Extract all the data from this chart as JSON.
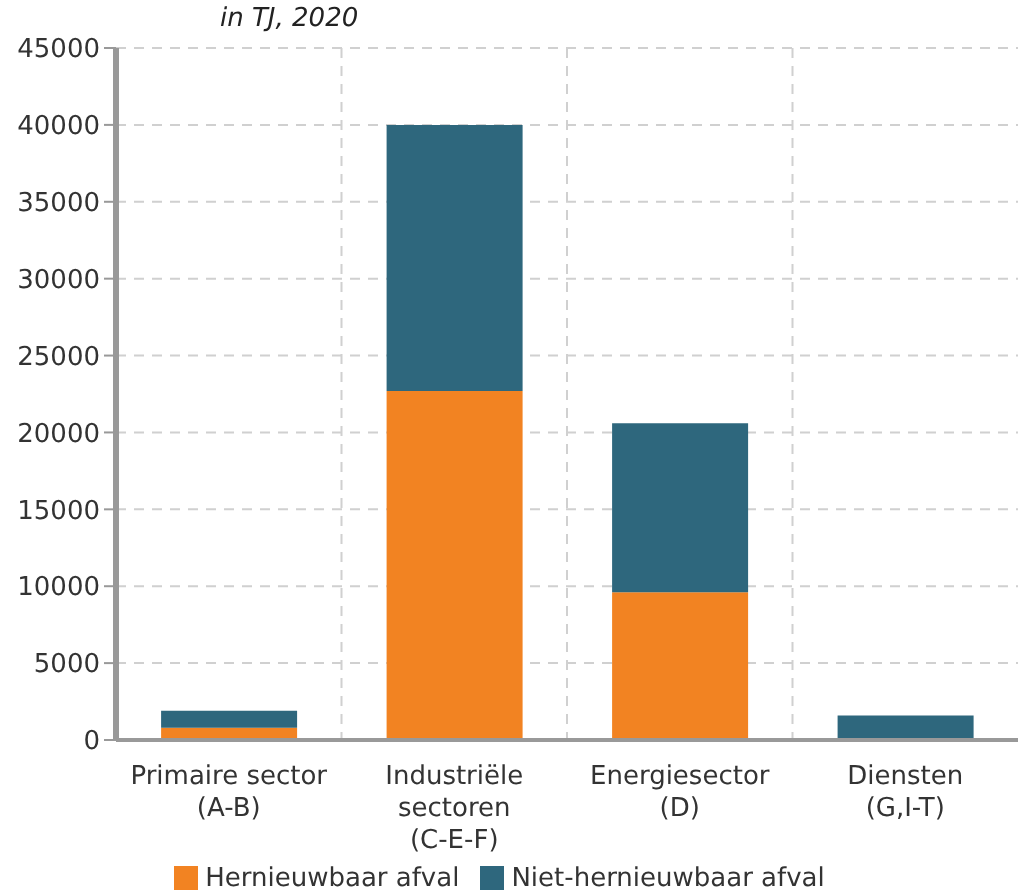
{
  "chart_data": {
    "type": "bar",
    "title": "in TJ, 2020",
    "stacked": true,
    "categories": [
      "Primaire sector (A-B)",
      "Industriële sectoren (C-E-F)",
      "Energiesector (D)",
      "Diensten (G,I-T)"
    ],
    "series": [
      {
        "name": "Hernieuwbaar afval",
        "color": "#f28322",
        "values": [
          800,
          22700,
          9600,
          0
        ]
      },
      {
        "name": "Niet-hernieuwbaar afval",
        "color": "#2e677d",
        "values": [
          1100,
          17300,
          11000,
          1600
        ]
      }
    ],
    "ylim": [
      0,
      45000
    ],
    "yticks": [
      0,
      5000,
      10000,
      15000,
      20000,
      25000,
      30000,
      35000,
      40000,
      45000
    ],
    "grid": true,
    "legend": "bottom"
  }
}
